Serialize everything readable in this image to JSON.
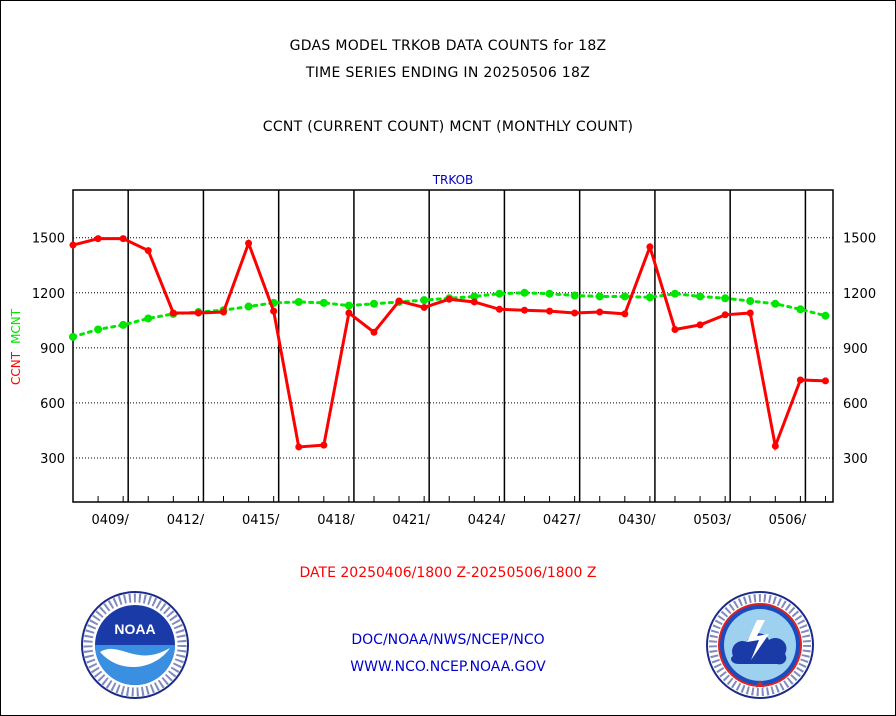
{
  "header": {
    "line1": "GDAS MODEL TRKOB DATA COUNTS for 18Z",
    "line2": "TIME SERIES ENDING IN 20250506 18Z",
    "line3": "CCNT (CURRENT COUNT) MCNT (MONTHLY COUNT)"
  },
  "footer": {
    "date_range": "DATE 20250406/1800 Z-20250506/1800 Z",
    "org": "DOC/NOAA/NWS/NCEP/NCO",
    "url": "WWW.NCO.NCEP.NOAA.GOV"
  },
  "logos": {
    "left_text": "NOAA",
    "right_text": "NATIONAL WEATHER SERVICE"
  },
  "colors": {
    "ccnt": "#ff0000",
    "mcnt": "#00e600",
    "panel_title": "#0000cc",
    "footer_blue": "#0000cc"
  },
  "chart_data": {
    "type": "line",
    "title": "TRKOB",
    "ylabel_left_parts": [
      "CCNT",
      "MCNT"
    ],
    "ylim": [
      60,
      1760
    ],
    "xlim": [
      0,
      30.3
    ],
    "yticks": [
      300,
      600,
      900,
      1200,
      1500
    ],
    "xtick_labels": [
      "0409/",
      "0412/",
      "0415/",
      "0418/",
      "0421/",
      "0424/",
      "0427/",
      "0430/",
      "0503/",
      "0506/"
    ],
    "xtick_positions": [
      2.2,
      5.2,
      8.2,
      11.2,
      14.2,
      17.2,
      20.2,
      23.2,
      26.2,
      29.2
    ],
    "vline_positions": [
      2.2,
      5.2,
      8.2,
      11.2,
      14.2,
      17.2,
      20.2,
      23.2,
      26.2,
      29.2
    ],
    "grid": true,
    "series": [
      {
        "name": "CCNT",
        "style": "solid",
        "x": [
          0,
          1,
          2,
          3,
          4,
          5,
          6,
          7,
          8,
          9,
          10,
          11,
          12,
          13,
          14,
          15,
          16,
          17,
          18,
          19,
          20,
          21,
          22,
          23,
          24,
          25,
          26,
          27,
          28,
          29,
          30
        ],
        "values": [
          1460,
          1495,
          1495,
          1430,
          1090,
          1090,
          1095,
          1470,
          1100,
          360,
          370,
          1090,
          985,
          1155,
          1120,
          1165,
          1150,
          1110,
          1105,
          1100,
          1090,
          1095,
          1085,
          1450,
          1000,
          1025,
          1080,
          1090,
          365,
          725,
          720
        ]
      },
      {
        "name": "MCNT",
        "style": "dotted",
        "x": [
          0,
          1,
          2,
          3,
          4,
          5,
          6,
          7,
          8,
          9,
          10,
          11,
          12,
          13,
          14,
          15,
          16,
          17,
          18,
          19,
          20,
          21,
          22,
          23,
          24,
          25,
          26,
          27,
          28,
          29,
          30
        ],
        "values": [
          960,
          1000,
          1025,
          1060,
          1085,
          1095,
          1105,
          1125,
          1145,
          1150,
          1145,
          1130,
          1140,
          1150,
          1160,
          1170,
          1180,
          1195,
          1200,
          1195,
          1185,
          1180,
          1180,
          1175,
          1195,
          1180,
          1170,
          1155,
          1140,
          1110,
          1075
        ]
      }
    ]
  }
}
